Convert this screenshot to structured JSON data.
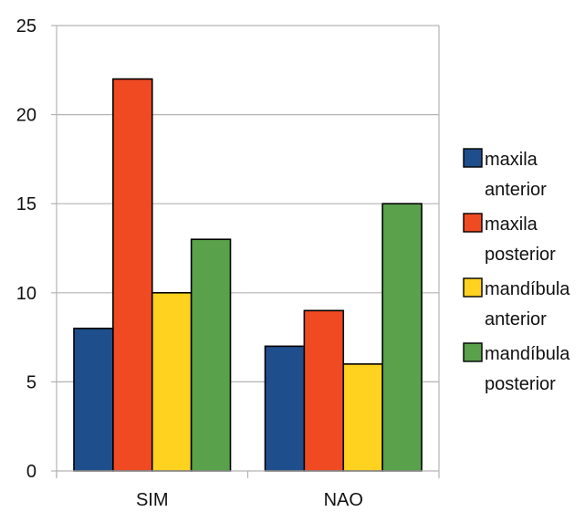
{
  "chart_data": {
    "type": "bar",
    "categories": [
      "SIM",
      "NAO"
    ],
    "series": [
      {
        "name": "maxila anterior",
        "values": [
          8,
          7
        ],
        "color": "#1F4E8C"
      },
      {
        "name": "maxila posterior",
        "values": [
          22,
          9
        ],
        "color": "#F04A23"
      },
      {
        "name": "mandíbula anterior",
        "values": [
          10,
          6
        ],
        "color": "#FFD21F"
      },
      {
        "name": "mandíbula posterior",
        "values": [
          13,
          15
        ],
        "color": "#59A14A"
      }
    ],
    "ylim": [
      0,
      25
    ],
    "yticks": [
      0,
      5,
      10,
      15,
      20,
      25
    ],
    "grid": true,
    "legend": "right",
    "legend_lines": [
      [
        "maxila",
        "anterior"
      ],
      [
        "maxila",
        "posterior"
      ],
      [
        "mandíbula",
        "anterior"
      ],
      [
        "mandíbula",
        "posterior"
      ]
    ]
  }
}
